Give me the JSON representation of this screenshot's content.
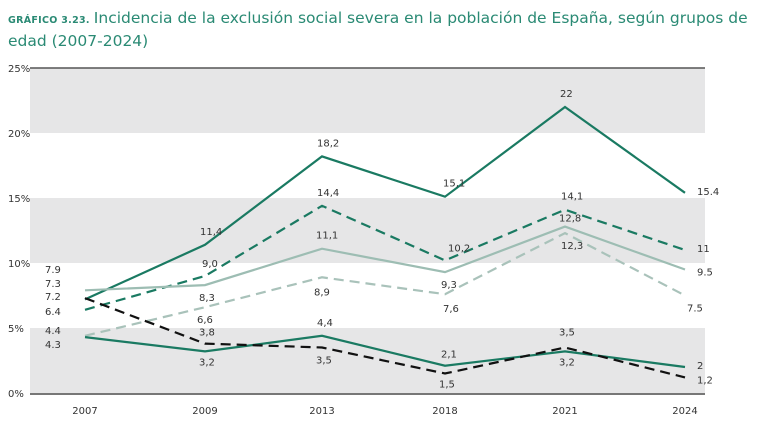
{
  "header": {
    "figure_number": "GRÁFICO 3.23.",
    "title": "Incidencia de la exclusión social severa en la población de España, según grupos de edad (2007-2024)"
  },
  "chart_data": {
    "type": "line",
    "title": "Incidencia de la exclusión social severa en la población de España, según grupos de edad (2007-2024)",
    "categories": [
      "2007",
      "2009",
      "2013",
      "2018",
      "2021",
      "2024"
    ],
    "ylim": [
      0,
      25
    ],
    "yticks": [
      "0%",
      "5%",
      "10%",
      "15%",
      "20%",
      "25%"
    ],
    "grid": "alternating horizontal bands",
    "legend": "none",
    "series": [
      {
        "values": [
          7.2,
          11.4,
          18.2,
          15.1,
          22,
          15.4
        ],
        "labels": [
          "7.2",
          "11,4",
          "18,2",
          "15,1",
          "22",
          "15.4"
        ],
        "color": "#1a7a62",
        "style": "solid"
      },
      {
        "values": [
          6.4,
          9.0,
          14.4,
          10.2,
          14.1,
          11
        ],
        "labels": [
          "6.4",
          "9,0",
          "14,4",
          "10,2",
          "14,1",
          "11"
        ],
        "color": "#1a7a62",
        "style": "dashed"
      },
      {
        "values": [
          7.9,
          8.3,
          11.1,
          9.3,
          12.8,
          9.5
        ],
        "labels": [
          "7.9",
          "8,3",
          "11,1",
          "9,3",
          "12,8",
          "9.5"
        ],
        "color": "#9dbdb3",
        "style": "solid"
      },
      {
        "values": [
          4.4,
          6.6,
          8.9,
          7.6,
          12.3,
          7.5
        ],
        "labels": [
          "4.4",
          "6,6",
          "8,9",
          "7,6",
          "12,3",
          "7.5"
        ],
        "color": "#a9c2ba",
        "style": "dashed"
      },
      {
        "values": [
          4.3,
          3.2,
          4.4,
          2.1,
          3.2,
          2
        ],
        "labels": [
          "4.3",
          "3,2",
          "4,4",
          "2,1",
          "3,2",
          "2"
        ],
        "color": "#1a7a62",
        "style": "solid"
      },
      {
        "values": [
          7.3,
          3.8,
          3.5,
          1.5,
          3.5,
          1.2
        ],
        "labels": [
          "7.3",
          "3,8",
          "3,5",
          "1,5",
          "3,5",
          "1,2"
        ],
        "color": "#111111",
        "style": "dashed"
      }
    ]
  }
}
